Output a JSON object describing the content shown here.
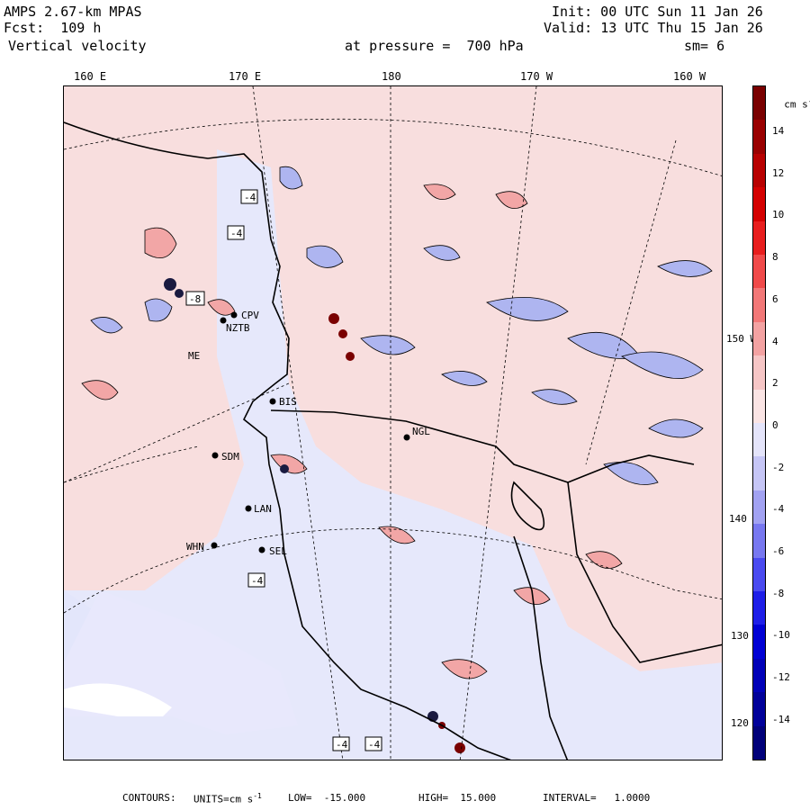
{
  "header": {
    "model": "AMPS 2.67-km MPAS",
    "forecast": "Fcst:  109 h",
    "field": "Vertical velocity",
    "init": "Init: 00 UTC Sun 11 Jan 26",
    "valid": "Valid: 13 UTC Thu 15 Jan 26",
    "pressure": "at pressure =  700 hPa",
    "smoothing": "sm= 6"
  },
  "axes": {
    "top_lon_labels": [
      "160 E",
      "170 E",
      "180",
      "170 W",
      "160 W"
    ],
    "right_lon_labels": [
      "150 W",
      "140 W",
      "130 W",
      "120 W"
    ]
  },
  "colorbar": {
    "units": "cm s",
    "units_exp": "-1",
    "labels": [
      "14",
      "12",
      "10",
      "8",
      "6",
      "4",
      "2",
      "0",
      "-2",
      "-4",
      "-6",
      "-8",
      "-10",
      "-12",
      "-14"
    ],
    "colors": [
      "#7a0000",
      "#9a0000",
      "#b80000",
      "#d40000",
      "#e81e1e",
      "#f04a4a",
      "#f27878",
      "#f3a2a2",
      "#f6c6c6",
      "#fae4e4",
      "#e4e4fa",
      "#c6c6f6",
      "#a2a2f2",
      "#7878f0",
      "#4a4af0",
      "#1e1ee8",
      "#0000d4",
      "#0000b8",
      "#00009a",
      "#00007a"
    ]
  },
  "stations": [
    "CPV",
    "NZTB",
    "BIS",
    "NGL",
    "SDM",
    "LAN",
    "WHN",
    "SEL",
    "ME"
  ],
  "box_labels": [
    "-4",
    "-4",
    "-8",
    "-4",
    "-4",
    "-4"
  ],
  "footer": {
    "contours": "CONTOURS:",
    "units": "UNITS=cm s",
    "units_exp": "-1",
    "low": "LOW=  -15.000",
    "high": "HIGH=  15.000",
    "interval": "INTERVAL=   1.0000"
  }
}
